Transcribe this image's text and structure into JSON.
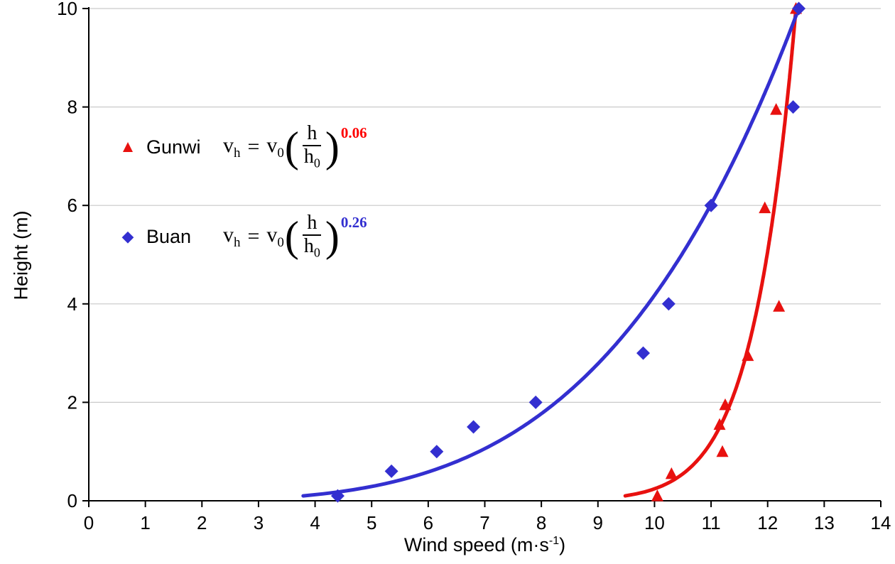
{
  "chart_data": {
    "type": "scatter",
    "title": "",
    "xlabel": "Wind speed (m·s⁻¹)",
    "xlabel_parts": {
      "prefix": "Wind speed (m·s",
      "sup": "-1",
      "suffix": ")"
    },
    "ylabel": "Height (m)",
    "xlim": [
      0,
      14
    ],
    "ylim": [
      0,
      10
    ],
    "xticks": [
      0,
      1,
      2,
      3,
      4,
      5,
      6,
      7,
      8,
      9,
      10,
      11,
      12,
      13,
      14
    ],
    "yticks": [
      0,
      2,
      4,
      6,
      8,
      10
    ],
    "grid": {
      "horizontal": true,
      "vertical": false,
      "color": "#c9c9c9"
    },
    "axis_color": "#000000",
    "background": "#ffffff",
    "series": [
      {
        "name": "Gunwi",
        "marker": "triangle",
        "color": "#e8110f",
        "points": [
          [
            10.05,
            0.1
          ],
          [
            10.3,
            0.55
          ],
          [
            11.2,
            1.0
          ],
          [
            11.15,
            1.55
          ],
          [
            11.25,
            1.95
          ],
          [
            11.65,
            2.95
          ],
          [
            12.2,
            3.95
          ],
          [
            11.95,
            5.95
          ],
          [
            12.15,
            7.95
          ],
          [
            12.5,
            10.0
          ]
        ],
        "fit_curve": {
          "model": "v = v0*(h/h0)^alpha",
          "alpha": 0.06,
          "v0": 12.5,
          "h0": 10,
          "h_start": 0.1,
          "h_end": 10
        },
        "formula_text": "vh = v0(h/h0)^0.06"
      },
      {
        "name": "Buan",
        "marker": "diamond",
        "color": "#332fd0",
        "points": [
          [
            4.4,
            0.1
          ],
          [
            5.35,
            0.6
          ],
          [
            6.15,
            1.0
          ],
          [
            6.8,
            1.5
          ],
          [
            7.9,
            2.0
          ],
          [
            9.8,
            3.0
          ],
          [
            10.25,
            4.0
          ],
          [
            11.0,
            6.0
          ],
          [
            12.45,
            8.0
          ],
          [
            12.55,
            10.0
          ]
        ],
        "fit_curve": {
          "model": "v = v0*(h/h0)^alpha",
          "alpha": 0.26,
          "v0": 12.55,
          "h0": 10,
          "h_start": 0.1,
          "h_end": 10
        },
        "formula_text": "vh = v0(h/h0)^0.26"
      }
    ],
    "legend": [
      {
        "name": "Gunwi",
        "marker_glyph": "▲",
        "color": "#e8110f",
        "exponent_color": "#fe0000",
        "formula": {
          "lhs_base": "v",
          "lhs_sub": "h",
          "equals": "=",
          "rhs_base": "v",
          "rhs_sub": "0",
          "open_paren": "(",
          "frac_num": "h",
          "frac_den_base": "h",
          "frac_den_sub": "0",
          "close_paren": ")",
          "exponent": "0.06"
        }
      },
      {
        "name": "Buan",
        "marker_glyph": "◆",
        "color": "#332fd0",
        "exponent_color": "#332fd0",
        "formula": {
          "lhs_base": "v",
          "lhs_sub": "h",
          "equals": "=",
          "rhs_base": "v",
          "rhs_sub": "0",
          "open_paren": "(",
          "frac_num": "h",
          "frac_den_base": "h",
          "frac_den_sub": "0",
          "close_paren": ")",
          "exponent": "0.26"
        }
      }
    ]
  }
}
